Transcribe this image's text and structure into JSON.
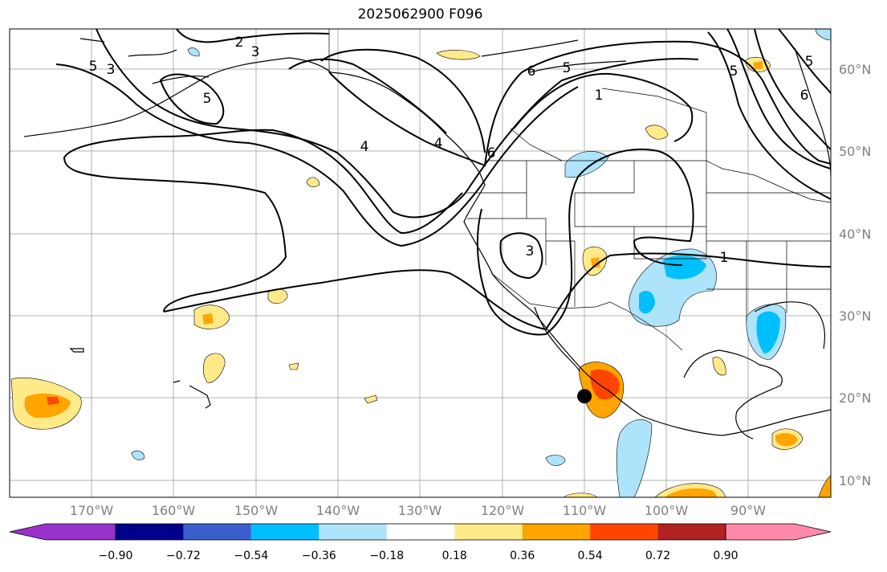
{
  "title": "2025062900 F096",
  "map": {
    "projection": "lat-lon",
    "lon_range": [
      -180,
      -80
    ],
    "lat_range": [
      8,
      65
    ],
    "grid": true,
    "lat_labels": [
      "60°N",
      "50°N",
      "40°N",
      "30°N",
      "20°N",
      "10°N"
    ],
    "lon_labels": [
      "170°W",
      "160°W",
      "150°W",
      "140°W",
      "130°W",
      "120°W",
      "110°W",
      "100°W",
      "90°W"
    ],
    "contour_labels": [
      "2",
      "3",
      "3",
      "5",
      "5",
      "6",
      "5",
      "1",
      "4",
      "4",
      "6",
      "5",
      "3",
      "1",
      "5",
      "6"
    ],
    "marker": {
      "lon": -110,
      "lat": 20.3
    }
  },
  "colorbar": {
    "ticks": [
      "−0.90",
      "−0.72",
      "−0.54",
      "−0.36",
      "−0.18",
      "0.18",
      "0.36",
      "0.54",
      "0.72",
      "0.90"
    ],
    "colors": [
      "#9932cc",
      "#00008b",
      "#3a5fcd",
      "#00bfff",
      "#ade4fb",
      "#ffffff",
      "#ffea8a",
      "#ffa500",
      "#ff4500",
      "#b22222",
      "#ff88aa"
    ]
  }
}
